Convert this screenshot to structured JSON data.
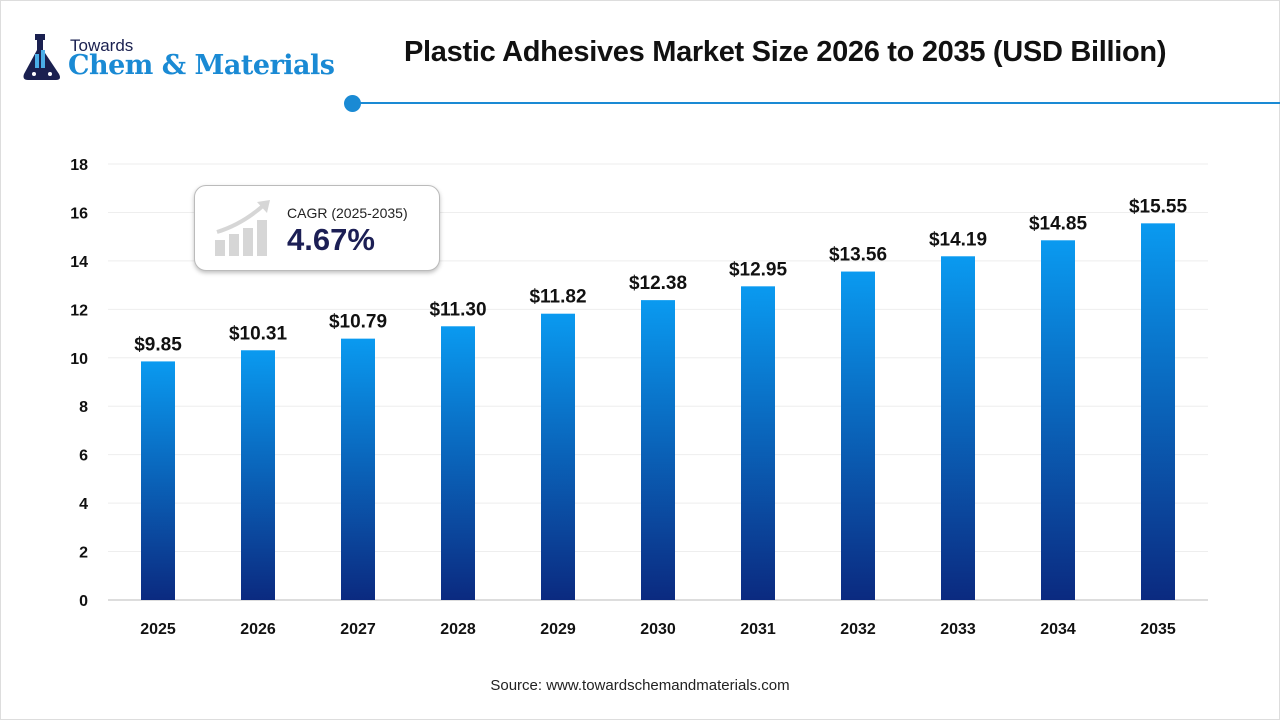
{
  "logo": {
    "line1": "Towards",
    "line2": "Chem & Materials"
  },
  "cagr": {
    "label": "CAGR (2025-2035)",
    "value": "4.67%"
  },
  "source": "Source: www.towardschemandmaterials.com",
  "colors": {
    "accent": "#1a8ad4",
    "bar_top": "#0a9af0",
    "bar_bottom": "#0b2a80"
  },
  "chart_data": {
    "type": "bar",
    "title": "Plastic Adhesives Market Size 2026 to 2035 (USD Billion)",
    "xlabel": "",
    "ylabel": "",
    "categories": [
      "2025",
      "2026",
      "2027",
      "2028",
      "2029",
      "2030",
      "2031",
      "2032",
      "2033",
      "2034",
      "2035"
    ],
    "values": [
      9.85,
      10.31,
      10.79,
      11.3,
      11.82,
      12.38,
      12.95,
      13.56,
      14.19,
      14.85,
      15.55
    ],
    "data_labels": [
      "$9.85",
      "$10.31",
      "$10.79",
      "$11.30",
      "$11.82",
      "$12.38",
      "$12.95",
      "$13.56",
      "$14.19",
      "$14.85",
      "$15.55"
    ],
    "ylim": [
      0,
      18
    ],
    "yticks": [
      0,
      2,
      4,
      6,
      8,
      10,
      12,
      14,
      16,
      18
    ],
    "grid": true,
    "legend": "none"
  }
}
